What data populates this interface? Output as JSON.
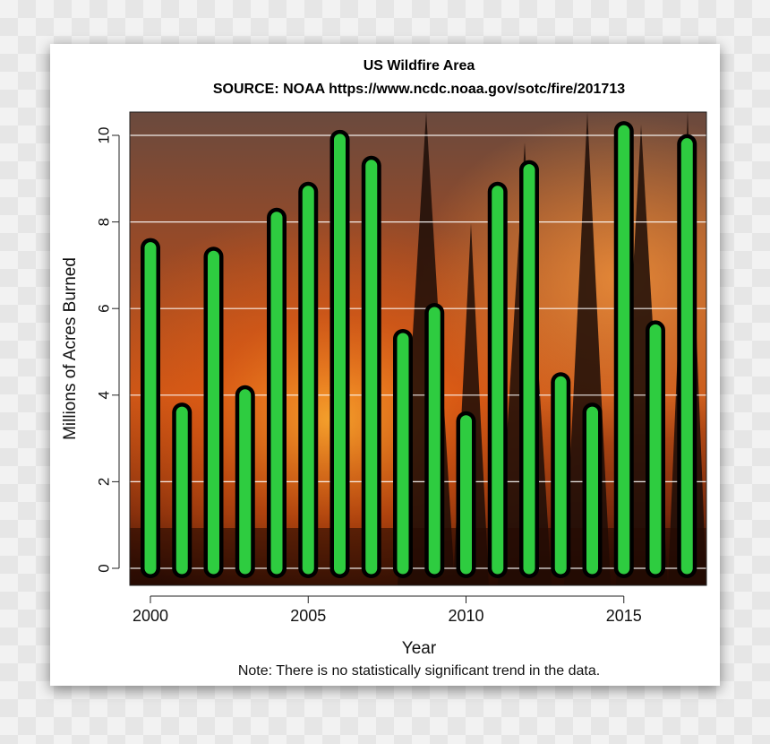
{
  "colors": {
    "bar_fill": "#2ecc40",
    "bar_outline": "#000000",
    "gridline": "#ffffff",
    "card": "#ffffff"
  },
  "chart_data": {
    "type": "bar",
    "title": "US Wildfire Area",
    "subtitle": "SOURCE: NOAA https://www.ncdc.noaa.gov/sotc/fire/201713",
    "xlabel": "Year",
    "ylabel": "Millions of Acres Burned",
    "note": "Note: There is no statistically significant trend in the data.",
    "x": [
      2000,
      2001,
      2002,
      2003,
      2004,
      2005,
      2006,
      2007,
      2008,
      2009,
      2010,
      2011,
      2012,
      2013,
      2014,
      2015,
      2016,
      2017
    ],
    "values": [
      7.4,
      3.6,
      7.2,
      4.0,
      8.1,
      8.7,
      9.9,
      9.3,
      5.3,
      5.9,
      3.4,
      8.7,
      9.2,
      4.3,
      3.6,
      10.1,
      5.5,
      9.8
    ],
    "xticks": [
      "2000",
      "2005",
      "2010",
      "2015"
    ],
    "yticks": [
      "0",
      "2",
      "4",
      "6",
      "8",
      "10"
    ],
    "ylim": [
      -0.4,
      10.5
    ],
    "grid": true,
    "background_image": "wildfire forest photo"
  }
}
